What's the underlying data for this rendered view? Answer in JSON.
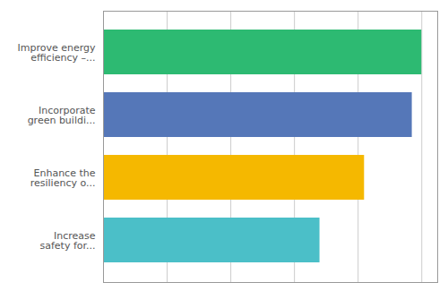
{
  "chart_data": {
    "type": "bar",
    "orientation": "horizontal",
    "categories": [
      "Increase\nsafety for...",
      "Enhance the\nresiliency o...",
      "Incorporate\ngreen buildi...",
      "Improve energy\nefficiency –..."
    ],
    "values": [
      68,
      82,
      97,
      100
    ],
    "colors": [
      "#4bbfc8",
      "#f5b800",
      "#5577b8",
      "#2dba72"
    ],
    "xlim": [
      0,
      105
    ],
    "xticks": [
      0,
      20,
      40,
      60,
      80,
      100
    ],
    "grid": true,
    "tick_labels": "y"
  }
}
